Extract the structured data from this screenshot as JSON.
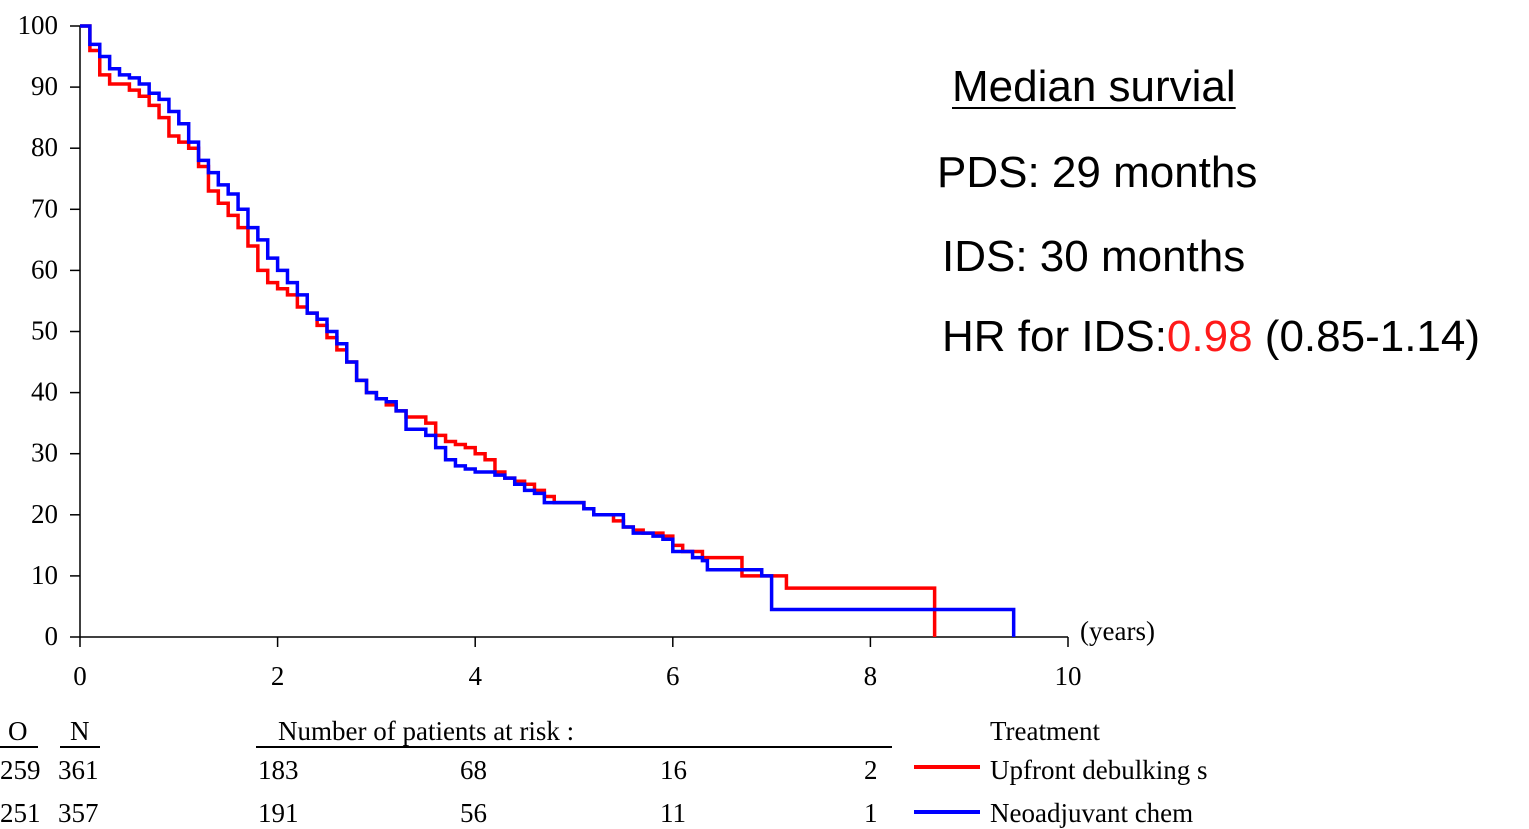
{
  "chart_data": {
    "type": "line",
    "subtype": "kaplan-meier",
    "xlim": [
      0,
      10
    ],
    "ylim": [
      0,
      100
    ],
    "x_ticks": [
      "0",
      "2",
      "4",
      "6",
      "8",
      "10"
    ],
    "y_ticks": [
      "0",
      "10",
      "20",
      "30",
      "40",
      "50",
      "60",
      "70",
      "80",
      "90",
      "100"
    ],
    "x_unit_label": "(years)",
    "grid": false,
    "series": [
      {
        "name": "Upfront debulking s",
        "color": "#ff0000",
        "points": [
          [
            0,
            100
          ],
          [
            0.1,
            96
          ],
          [
            0.2,
            92
          ],
          [
            0.3,
            90.5
          ],
          [
            0.5,
            89.5
          ],
          [
            0.6,
            88.5
          ],
          [
            0.7,
            87
          ],
          [
            0.8,
            85
          ],
          [
            0.9,
            82
          ],
          [
            1.0,
            81
          ],
          [
            1.1,
            80
          ],
          [
            1.2,
            77
          ],
          [
            1.3,
            73
          ],
          [
            1.4,
            71
          ],
          [
            1.5,
            69
          ],
          [
            1.6,
            67
          ],
          [
            1.7,
            64
          ],
          [
            1.8,
            60
          ],
          [
            1.9,
            58
          ],
          [
            2.0,
            57
          ],
          [
            2.1,
            56
          ],
          [
            2.2,
            54
          ],
          [
            2.3,
            53
          ],
          [
            2.4,
            51
          ],
          [
            2.5,
            49
          ],
          [
            2.6,
            47
          ],
          [
            2.7,
            45
          ],
          [
            2.8,
            42
          ],
          [
            2.9,
            40
          ],
          [
            3.0,
            39
          ],
          [
            3.1,
            38
          ],
          [
            3.2,
            37
          ],
          [
            3.3,
            36
          ],
          [
            3.4,
            36
          ],
          [
            3.5,
            35
          ],
          [
            3.6,
            33
          ],
          [
            3.7,
            32
          ],
          [
            3.8,
            31.5
          ],
          [
            3.9,
            31
          ],
          [
            4.0,
            30
          ],
          [
            4.1,
            29
          ],
          [
            4.2,
            27
          ],
          [
            4.3,
            26
          ],
          [
            4.4,
            25.5
          ],
          [
            4.5,
            25
          ],
          [
            4.6,
            24
          ],
          [
            4.7,
            23
          ],
          [
            4.8,
            22
          ],
          [
            5.0,
            22
          ],
          [
            5.1,
            21
          ],
          [
            5.2,
            20
          ],
          [
            5.3,
            20
          ],
          [
            5.4,
            19
          ],
          [
            5.5,
            18
          ],
          [
            5.6,
            17.5
          ],
          [
            5.7,
            17
          ],
          [
            5.8,
            17
          ],
          [
            5.9,
            16.5
          ],
          [
            6.0,
            15
          ],
          [
            6.1,
            14
          ],
          [
            6.2,
            14
          ],
          [
            6.3,
            13
          ],
          [
            6.7,
            13
          ],
          [
            6.7,
            10
          ],
          [
            6.9,
            10
          ],
          [
            7.15,
            9.5
          ],
          [
            7.15,
            8
          ],
          [
            8.65,
            8
          ],
          [
            8.65,
            0
          ]
        ]
      },
      {
        "name": "Neoadjuvant chem",
        "color": "#0000ff",
        "points": [
          [
            0,
            100
          ],
          [
            0.1,
            97
          ],
          [
            0.2,
            95
          ],
          [
            0.3,
            93
          ],
          [
            0.4,
            92
          ],
          [
            0.5,
            91.5
          ],
          [
            0.6,
            90.5
          ],
          [
            0.7,
            89
          ],
          [
            0.8,
            88
          ],
          [
            0.9,
            86
          ],
          [
            1.0,
            84
          ],
          [
            1.1,
            81
          ],
          [
            1.2,
            78
          ],
          [
            1.3,
            76
          ],
          [
            1.4,
            74
          ],
          [
            1.5,
            72.5
          ],
          [
            1.6,
            70
          ],
          [
            1.7,
            67
          ],
          [
            1.8,
            65
          ],
          [
            1.9,
            62
          ],
          [
            2.0,
            60
          ],
          [
            2.1,
            58
          ],
          [
            2.2,
            56
          ],
          [
            2.3,
            53
          ],
          [
            2.4,
            52
          ],
          [
            2.5,
            50
          ],
          [
            2.6,
            48
          ],
          [
            2.7,
            45
          ],
          [
            2.8,
            42
          ],
          [
            2.9,
            40
          ],
          [
            3.0,
            39
          ],
          [
            3.1,
            38.5
          ],
          [
            3.2,
            37
          ],
          [
            3.3,
            34
          ],
          [
            3.4,
            34
          ],
          [
            3.5,
            33
          ],
          [
            3.6,
            31
          ],
          [
            3.7,
            29
          ],
          [
            3.8,
            28
          ],
          [
            3.9,
            27.5
          ],
          [
            4.0,
            27
          ],
          [
            4.1,
            27
          ],
          [
            4.2,
            26.5
          ],
          [
            4.3,
            26
          ],
          [
            4.4,
            25
          ],
          [
            4.5,
            24
          ],
          [
            4.6,
            23.5
          ],
          [
            4.7,
            22
          ],
          [
            5.0,
            22
          ],
          [
            5.1,
            21
          ],
          [
            5.2,
            20
          ],
          [
            5.3,
            20
          ],
          [
            5.4,
            20
          ],
          [
            5.5,
            18
          ],
          [
            5.6,
            17
          ],
          [
            5.7,
            17
          ],
          [
            5.8,
            16.5
          ],
          [
            5.9,
            16
          ],
          [
            6.0,
            14
          ],
          [
            6.1,
            14
          ],
          [
            6.2,
            13
          ],
          [
            6.3,
            12.5
          ],
          [
            6.35,
            11
          ],
          [
            6.9,
            11
          ],
          [
            6.9,
            10
          ],
          [
            7.0,
            10
          ],
          [
            7.0,
            4.5
          ],
          [
            9.45,
            4.5
          ],
          [
            9.45,
            0
          ]
        ]
      }
    ]
  },
  "annotations": {
    "heading": "Median survial",
    "pds": "PDS: 29 months",
    "ids": "IDS: 30 months",
    "hr_prefix": "HR for IDS:",
    "hr_value": "0.98",
    "hr_ci": " (0.85-1.14)",
    "hr_value_color": "#ff1a1a"
  },
  "risk_table": {
    "col_o": "O",
    "col_n": "N",
    "header": "Number of patients at risk :",
    "treatment_header": "Treatment",
    "rows": [
      {
        "o": "259",
        "n": "361",
        "risk": [
          "183",
          "68",
          "16",
          "2"
        ],
        "treatment": "Upfront debulking s",
        "color": "#ff0000"
      },
      {
        "o": "251",
        "n": "357",
        "risk": [
          "191",
          "56",
          "11",
          "1"
        ],
        "treatment": "Neoadjuvant chem",
        "color": "#0000ff"
      }
    ]
  }
}
